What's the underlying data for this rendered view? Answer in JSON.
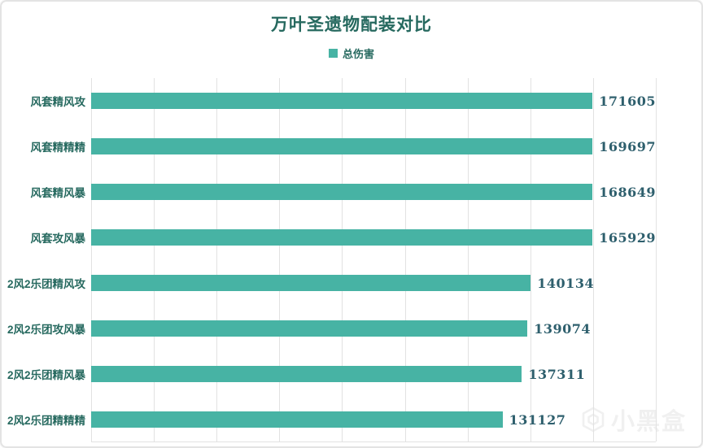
{
  "card": {
    "background": "#ffffff",
    "border_color": "#e3e3e3"
  },
  "chart_data": {
    "type": "bar",
    "orientation": "horizontal",
    "title": "万叶圣遗物配装对比",
    "legend": [
      "总伤害"
    ],
    "legend_position": "top-center",
    "categories": [
      "风套精风攻",
      "风套精精精",
      "风套精风暴",
      "风套攻风暴",
      "2风2乐团精风攻",
      "2风2乐团攻风暴",
      "2风2乐团精风暴",
      "2风2乐团精精精"
    ],
    "values": [
      171605,
      169697,
      168649,
      165929,
      140134,
      139074,
      137311,
      131127
    ],
    "value_labels_shown": true,
    "xlabel": "",
    "ylabel": "",
    "xlim": [
      0,
      180000
    ],
    "grid_step": 20000,
    "grid": true,
    "x_tick_labels_shown": false,
    "colors": {
      "bar": "#47b3a4",
      "title": "#26695f",
      "category_label": "#26695f",
      "value_label": "#2e5f6d",
      "gridline": "#e2e2e2"
    }
  },
  "watermark": {
    "text": "小黑盒"
  }
}
